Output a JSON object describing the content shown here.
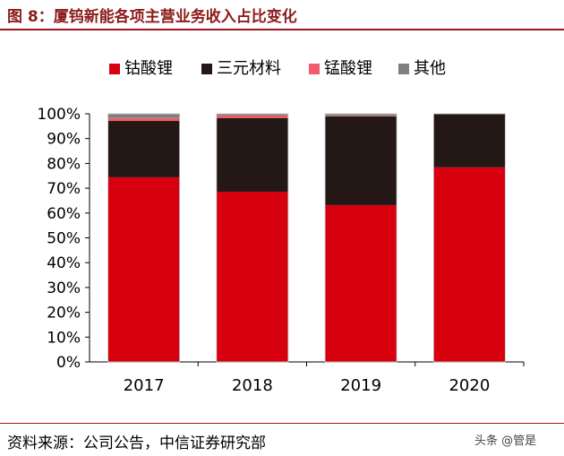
{
  "title": "图 8：厦钨新能各项主营业务收入占比变化",
  "source": "资料来源：公司公告，中信证券研究部",
  "watermark": "头条 @管是",
  "chart_data": {
    "type": "bar",
    "stacked": true,
    "categories": [
      "2017",
      "2018",
      "2019",
      "2020"
    ],
    "series": [
      {
        "name": "钴酸锂",
        "color": "#d7000f",
        "values": [
          74.4,
          68.6,
          63.2,
          78.4
        ]
      },
      {
        "name": "三元材料",
        "color": "#231815",
        "values": [
          22.7,
          29.7,
          35.8,
          21.5
        ]
      },
      {
        "name": "锰酸锂",
        "color": "#f25b6b",
        "values": [
          1.2,
          1.0,
          0.2,
          0.0
        ]
      },
      {
        "name": "其他",
        "color": "#808080",
        "values": [
          1.7,
          0.7,
          0.8,
          0.1
        ]
      }
    ],
    "ylim": [
      0,
      100
    ],
    "yticks": [
      "0%",
      "10%",
      "20%",
      "30%",
      "40%",
      "50%",
      "60%",
      "70%",
      "80%",
      "90%",
      "100%"
    ],
    "legend": "top",
    "grid": false
  }
}
